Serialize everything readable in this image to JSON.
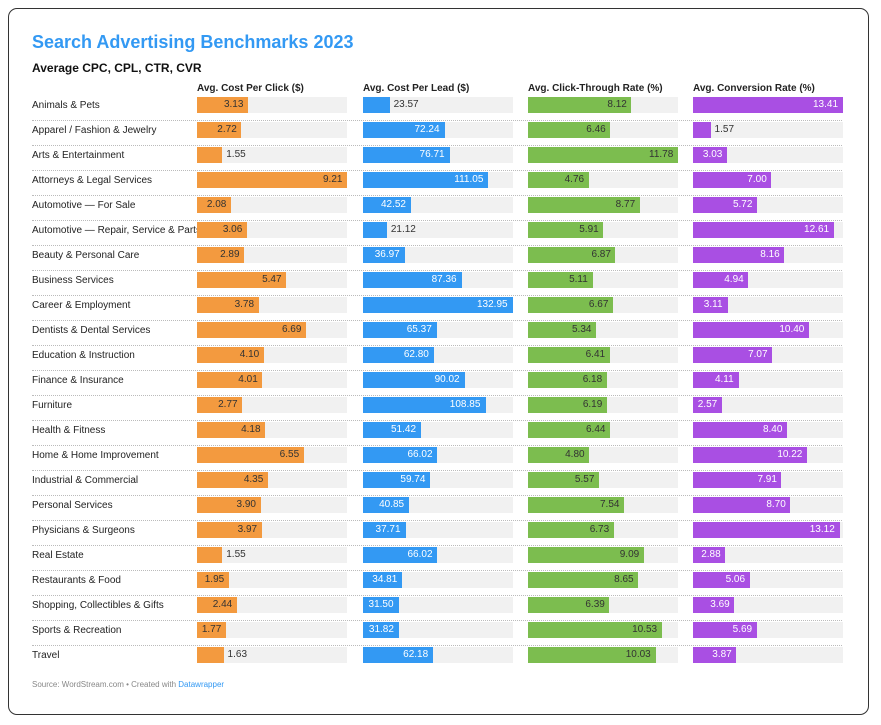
{
  "header": {
    "title": "Search Advertising Benchmarks 2023",
    "subtitle": "Average CPC, CPL, CTR, CVR"
  },
  "footer": {
    "source": "Source: WordStream.com • Created with ",
    "link": "Datawrapper"
  },
  "chart_data": {
    "type": "bar",
    "title": "Search Advertising Benchmarks 2023",
    "subtitle": "Average CPC, CPL, CTR, CVR",
    "categories": [
      "Animals & Pets",
      "Apparel / Fashion & Jewelry",
      "Arts & Entertainment",
      "Attorneys & Legal Services",
      "Automotive — For Sale",
      "Automotive — Repair, Service & Parts",
      "Beauty & Personal Care",
      "Business Services",
      "Career & Employment",
      "Dentists & Dental Services",
      "Education & Instruction",
      "Finance & Insurance",
      "Furniture",
      "Health & Fitness",
      "Home & Home Improvement",
      "Industrial & Commercial",
      "Personal Services",
      "Physicians & Surgeons",
      "Real Estate",
      "Restaurants & Food",
      "Shopping, Collectibles & Gifts",
      "Sports & Recreation",
      "Travel"
    ],
    "series": [
      {
        "name": "Avg. Cost Per Click ($)",
        "color": "#f39a3f",
        "text_color": "#333333",
        "values": [
          3.13,
          2.72,
          1.55,
          9.21,
          2.08,
          3.06,
          2.89,
          5.47,
          3.78,
          6.69,
          4.1,
          4.01,
          2.77,
          4.18,
          6.55,
          4.35,
          3.9,
          3.97,
          1.55,
          1.95,
          2.44,
          1.77,
          1.63
        ]
      },
      {
        "name": "Avg. Cost Per Lead ($)",
        "color": "#3399f3",
        "text_color": "#ffffff",
        "values": [
          23.57,
          72.24,
          76.71,
          111.05,
          42.52,
          21.12,
          36.97,
          87.36,
          132.95,
          65.37,
          62.8,
          90.02,
          108.85,
          51.42,
          66.02,
          59.74,
          40.85,
          37.71,
          66.02,
          34.81,
          31.5,
          31.82,
          62.18
        ]
      },
      {
        "name": "Avg. Click-Through Rate (%)",
        "color": "#7cbd4f",
        "text_color": "#333333",
        "values": [
          8.12,
          6.46,
          11.78,
          4.76,
          8.77,
          5.91,
          6.87,
          5.11,
          6.67,
          5.34,
          6.41,
          6.18,
          6.19,
          6.44,
          4.8,
          5.57,
          7.54,
          6.73,
          9.09,
          8.65,
          6.39,
          10.53,
          10.03
        ]
      },
      {
        "name": "Avg. Conversion Rate (%)",
        "color": "#a94fe3",
        "text_color": "#ffffff",
        "values": [
          13.41,
          1.57,
          3.03,
          7.0,
          5.72,
          12.61,
          8.16,
          4.94,
          3.11,
          10.4,
          7.07,
          4.11,
          2.57,
          8.4,
          10.22,
          7.91,
          8.7,
          13.12,
          2.88,
          5.06,
          3.69,
          5.69,
          3.87
        ]
      }
    ],
    "track_color": "#f1f1f1",
    "grid": false,
    "legend": "none"
  }
}
